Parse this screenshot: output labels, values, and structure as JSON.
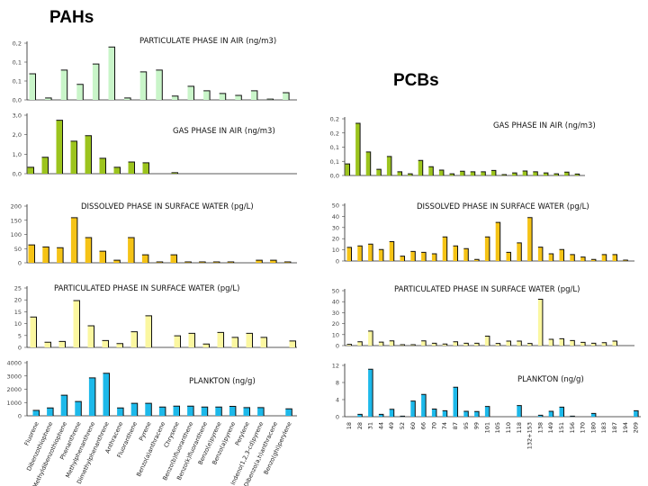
{
  "groups": {
    "pahs": "PAHs",
    "pcbs": "PCBs"
  },
  "colors": {
    "particulate_air": "#c9f5c9",
    "gas_air": "#9cc41e",
    "dissolved_water": "#f5c316",
    "particulate_water": "#fbf7a0",
    "plankton": "#1db9ea",
    "edge": "#111111"
  },
  "chart_data": [
    {
      "id": "pah_particulate_air",
      "group": "PAHs",
      "type": "bar",
      "title": "PARTICULATE PHASE IN AIR  (ng/m3)",
      "ylim": [
        0,
        0.15
      ],
      "yticks": [
        0.15,
        0.1,
        0.05,
        0
      ],
      "ytick_labels": [
        "0,2",
        "0,1",
        "0,1",
        "0,0"
      ],
      "color": "particulate_air",
      "values": [
        0.069,
        0.005,
        0.079,
        0.041,
        0.095,
        0.14,
        0.005,
        0.074,
        0.079,
        0.01,
        0.036,
        0.024,
        0.017,
        0.012,
        0.024,
        0.002,
        0.019
      ]
    },
    {
      "id": "pah_gas_air",
      "group": "PAHs",
      "type": "bar",
      "title": "GAS PHASE IN AIR (ng/m3)",
      "ylim": [
        0,
        3
      ],
      "yticks": [
        3,
        2,
        1,
        0
      ],
      "ytick_labels": [
        "3,0",
        "2,0",
        "1,0",
        "0,0"
      ],
      "color": "gas_air",
      "values": [
        0.33,
        0.84,
        2.74,
        1.67,
        1.95,
        0.79,
        0.33,
        0.6,
        0.56,
        0,
        0.05,
        0,
        0,
        0,
        0,
        0,
        0,
        0,
        0
      ]
    },
    {
      "id": "pah_dissolved_water",
      "group": "PAHs",
      "type": "bar",
      "title": "DISSOLVED PHASE IN SURFACE WATER (pg/L)",
      "ylim": [
        0,
        200
      ],
      "yticks": [
        200,
        150,
        100,
        50,
        0
      ],
      "ytick_labels": [
        "200",
        "150",
        "100",
        "50",
        "0"
      ],
      "color": "dissolved_water",
      "values": [
        63,
        56,
        53,
        159,
        89,
        41,
        9,
        89,
        28,
        3,
        28,
        3,
        3,
        3,
        3,
        0,
        9,
        9,
        3
      ]
    },
    {
      "id": "pah_particulate_water",
      "group": "PAHs",
      "type": "bar",
      "title": "PARTICULATED PHASE IN SURFACE WATER (pg/L)",
      "ylim": [
        0,
        25
      ],
      "yticks": [
        25,
        20,
        15,
        10,
        5,
        0
      ],
      "ytick_labels": [
        "25",
        "20",
        "15",
        "10",
        "5",
        "0"
      ],
      "color": "particulate_water",
      "values": [
        12.8,
        2.2,
        2.5,
        19.7,
        9.1,
        2.9,
        1.6,
        6.6,
        13.3,
        0,
        4.9,
        5.9,
        1.4,
        6.3,
        4.2,
        5.9,
        4.2,
        0,
        2.7
      ]
    },
    {
      "id": "pah_plankton",
      "group": "PAHs",
      "type": "bar",
      "title": "PLANKTON (ng/g)",
      "ylim": [
        0,
        4000
      ],
      "yticks": [
        4000,
        3000,
        2000,
        1000,
        0
      ],
      "ytick_labels": [
        "4000",
        "3000",
        "2000",
        "1000",
        "0"
      ],
      "color": "plankton",
      "categories": [
        "Fluorene",
        "Dibenzothiophene",
        "Methyldibenzothiophene",
        "Phenanthrene",
        "Methylphenanthrene",
        "Dimethylphenanthrene",
        "Anthracene",
        "Fluoranthene",
        "Pyrene",
        "Benzo(a)anthracene",
        "Chrysene",
        "Benzo(b)fluoranthene",
        "Benzo(k)fluoranthene",
        "Benzo(e)pyrene",
        "Benzo(a)pyrene",
        "Perylene",
        "Indeno(1,2,3-cd)pyrene",
        "Dibenzo(a,h)anthracene",
        "Benzo(ghi)perylene"
      ],
      "values": [
        411,
        594,
        1554,
        1074,
        2857,
        3200,
        594,
        937,
        937,
        663,
        731,
        731,
        663,
        663,
        709,
        617,
        617,
        0,
        526
      ]
    },
    {
      "id": "pcb_gas_air",
      "group": "PCBs",
      "type": "bar",
      "title": "GAS PHASE IN AIR (ng/m3)",
      "ylim": [
        0,
        0.2
      ],
      "yticks": [
        0.2,
        0.15,
        0.1,
        0.05,
        0
      ],
      "ytick_labels": [
        "0,2",
        "0,2",
        "0,1",
        "0,1",
        "0,0"
      ],
      "color": "gas_air",
      "values": [
        0.041,
        0.184,
        0.083,
        0.022,
        0.067,
        0.013,
        0.006,
        0.053,
        0.031,
        0.019,
        0.006,
        0.015,
        0.013,
        0.013,
        0.018,
        0.003,
        0.009,
        0.016,
        0.013,
        0.009,
        0.006,
        0.012,
        0.005
      ]
    },
    {
      "id": "pcb_dissolved_water",
      "group": "PCBs",
      "type": "bar",
      "title": "DISSOLVED PHASE IN SURFACE WATER (pg/L)",
      "ylim": [
        0,
        50
      ],
      "yticks": [
        50,
        40,
        30,
        20,
        10,
        0
      ],
      "ytick_labels": [
        "50",
        "40",
        "30",
        "20",
        "10",
        "0"
      ],
      "color": "dissolved_water",
      "values": [
        12.2,
        13.5,
        15.1,
        10.3,
        17.3,
        4.3,
        8.6,
        7.8,
        6.5,
        21.6,
        13.5,
        11.1,
        1.4,
        21.6,
        34.6,
        7.8,
        16.2,
        38.9,
        12.4,
        6.5,
        10.3,
        5.7,
        3.5,
        1.4,
        5.7,
        5.7,
        0.8
      ]
    },
    {
      "id": "pcb_particulate_water",
      "group": "PCBs",
      "type": "bar",
      "title": "PARTICULATED PHASE IN SURFACE WATER (pg/L)",
      "ylim": [
        0,
        50
      ],
      "yticks": [
        50,
        40,
        30,
        20,
        10,
        0
      ],
      "ytick_labels": [
        "50",
        "40",
        "30",
        "20",
        "10",
        "0"
      ],
      "color": "particulate_water",
      "values": [
        1.1,
        3.5,
        13.2,
        3.2,
        4.3,
        0.8,
        0.8,
        4.3,
        2.2,
        1.4,
        3.5,
        2.2,
        2.2,
        8.6,
        1.9,
        4.1,
        4.1,
        1.9,
        42.2,
        5.7,
        6.2,
        4.6,
        3,
        2.2,
        2.7,
        4.1
      ]
    },
    {
      "id": "pcb_plankton",
      "group": "PCBs",
      "type": "bar",
      "title": "PLANKTON (ng/g)",
      "ylim": [
        0,
        12
      ],
      "yticks": [
        12,
        8,
        4,
        0
      ],
      "ytick_labels": [
        "12",
        "8",
        "4",
        "0"
      ],
      "color": "plankton",
      "categories": [
        "18",
        "28",
        "31",
        "44",
        "49",
        "52",
        "60",
        "66",
        "70",
        "74",
        "87",
        "95",
        "99",
        "101",
        "105",
        "110",
        "118",
        "132+153",
        "138",
        "149",
        "151",
        "156",
        "170",
        "180",
        "183",
        "187",
        "194",
        "209"
      ],
      "values": [
        0,
        0.56,
        11.1,
        0.56,
        1.75,
        0.14,
        3.65,
        5.2,
        1.8,
        1.4,
        6.9,
        1.26,
        1.2,
        2.4,
        0,
        0,
        2.6,
        0,
        0.35,
        1.26,
        2.25,
        0.14,
        0,
        0.77,
        0,
        0,
        0,
        1.4
      ]
    }
  ]
}
